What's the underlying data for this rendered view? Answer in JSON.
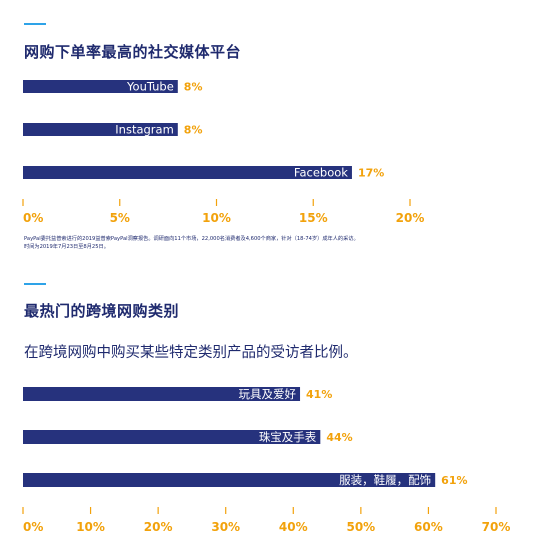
{
  "colors": {
    "bar": "#26327d",
    "bar_label": "#ffffff",
    "value": "#f2a20c",
    "tick": "#f2a20c",
    "title": "#1f2a6e",
    "accent_line": "#2ea3e8"
  },
  "section1": {
    "title": "网购下单率最高的社交媒体平台",
    "footnote_1": "PayPal委托益普索进行的2019益普索PayPal洞察报告。调研面向11个市场，22,000名消费者及4,600个商家，针对（18-74岁）成年人的采访。",
    "footnote_2": "时间为2019年7月23日至8月25日。"
  },
  "section2": {
    "title": "最热门的跨境网购类别",
    "subtitle": "在跨境网购中购买某些特定类别产品的受访者比例。"
  },
  "chart_data": [
    {
      "type": "bar",
      "orientation": "horizontal",
      "title": "网购下单率最高的社交媒体平台",
      "categories": [
        "YouTube",
        "Instagram",
        "Facebook"
      ],
      "values": [
        8,
        8,
        17
      ],
      "value_labels": [
        "8%",
        "8%",
        "17%"
      ],
      "xlim": [
        0,
        20
      ],
      "ticks": [
        0,
        5,
        10,
        15,
        20
      ],
      "tick_labels": [
        "0%",
        "5%",
        "10%",
        "15%",
        "20%"
      ],
      "grid": false
    },
    {
      "type": "bar",
      "orientation": "horizontal",
      "title": "最热门的跨境网购类别",
      "categories": [
        "玩具及爱好",
        "珠宝及手表",
        "服装，鞋履，配饰"
      ],
      "values": [
        41,
        44,
        61
      ],
      "value_labels": [
        "41%",
        "44%",
        "61%"
      ],
      "xlim": [
        0,
        70
      ],
      "ticks": [
        0,
        10,
        20,
        30,
        40,
        50,
        60,
        70
      ],
      "tick_labels": [
        "0%",
        "10%",
        "20%",
        "30%",
        "40%",
        "50%",
        "60%",
        "70%"
      ],
      "grid": false
    }
  ]
}
